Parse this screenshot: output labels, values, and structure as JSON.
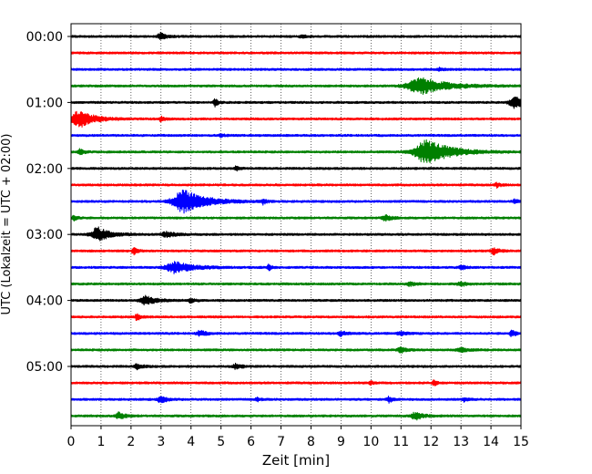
{
  "chart_data": {
    "type": "line",
    "title": "",
    "xlabel": "Zeit  [min]",
    "ylabel": "UTC (Lokalzeit = UTC + 02:00)",
    "xlim": [
      0,
      15
    ],
    "x_ticks": [
      0,
      1,
      2,
      3,
      4,
      5,
      6,
      7,
      8,
      9,
      10,
      11,
      12,
      13,
      14,
      15
    ],
    "y_tick_labels": [
      "00:00",
      "01:00",
      "02:00",
      "03:00",
      "04:00",
      "05:00"
    ],
    "row_minutes": 15,
    "grid": "vertical-dotted",
    "colors": [
      "#000000",
      "#ff0000",
      "#0000ff",
      "#008000"
    ],
    "rows": [
      {
        "start": "00:00",
        "color": "#000000",
        "events": [
          {
            "t": 3.0,
            "amp": 0.35,
            "dur": 0.3
          },
          {
            "t": 7.7,
            "amp": 0.15,
            "dur": 0.2
          }
        ]
      },
      {
        "start": "00:15",
        "color": "#ff0000",
        "events": []
      },
      {
        "start": "00:30",
        "color": "#0000ff",
        "events": [
          {
            "t": 12.3,
            "amp": 0.15,
            "dur": 0.2
          }
        ]
      },
      {
        "start": "00:45",
        "color": "#008000",
        "events": [
          {
            "t": 11.7,
            "amp": 0.85,
            "dur": 1.3
          }
        ]
      },
      {
        "start": "01:00",
        "color": "#000000",
        "events": [
          {
            "t": 4.8,
            "amp": 0.4,
            "dur": 0.15
          },
          {
            "t": 14.8,
            "amp": 0.6,
            "dur": 0.5
          }
        ]
      },
      {
        "start": "01:15",
        "color": "#ff0000",
        "events": [
          {
            "t": 0.3,
            "amp": 0.95,
            "dur": 0.7
          },
          {
            "t": 3.0,
            "amp": 0.25,
            "dur": 0.2
          }
        ]
      },
      {
        "start": "01:30",
        "color": "#0000ff",
        "events": [
          {
            "t": 5.0,
            "amp": 0.12,
            "dur": 0.2
          }
        ]
      },
      {
        "start": "01:45",
        "color": "#008000",
        "events": [
          {
            "t": 0.3,
            "amp": 0.3,
            "dur": 0.2
          },
          {
            "t": 11.9,
            "amp": 1.3,
            "dur": 1.2
          }
        ]
      },
      {
        "start": "02:00",
        "color": "#000000",
        "events": [
          {
            "t": 5.5,
            "amp": 0.25,
            "dur": 0.15
          }
        ]
      },
      {
        "start": "02:15",
        "color": "#ff0000",
        "events": [
          {
            "t": 14.2,
            "amp": 0.25,
            "dur": 0.2
          }
        ]
      },
      {
        "start": "02:30",
        "color": "#0000ff",
        "events": [
          {
            "t": 3.8,
            "amp": 1.2,
            "dur": 1.1
          },
          {
            "t": 6.4,
            "amp": 0.3,
            "dur": 0.15
          },
          {
            "t": 14.8,
            "amp": 0.25,
            "dur": 0.2
          }
        ]
      },
      {
        "start": "02:45",
        "color": "#008000",
        "events": [
          {
            "t": 0.1,
            "amp": 0.3,
            "dur": 0.15
          },
          {
            "t": 10.5,
            "amp": 0.3,
            "dur": 0.3
          }
        ]
      },
      {
        "start": "03:00",
        "color": "#000000",
        "events": [
          {
            "t": 0.9,
            "amp": 0.75,
            "dur": 0.6
          },
          {
            "t": 3.2,
            "amp": 0.25,
            "dur": 0.5
          }
        ]
      },
      {
        "start": "03:15",
        "color": "#ff0000",
        "events": [
          {
            "t": 2.1,
            "amp": 0.35,
            "dur": 0.2
          },
          {
            "t": 14.1,
            "amp": 0.35,
            "dur": 0.25
          }
        ]
      },
      {
        "start": "03:30",
        "color": "#0000ff",
        "events": [
          {
            "t": 3.5,
            "amp": 0.6,
            "dur": 0.9
          },
          {
            "t": 6.6,
            "amp": 0.3,
            "dur": 0.15
          },
          {
            "t": 13.0,
            "amp": 0.3,
            "dur": 0.2
          }
        ]
      },
      {
        "start": "03:45",
        "color": "#008000",
        "events": [
          {
            "t": 11.3,
            "amp": 0.2,
            "dur": 0.3
          },
          {
            "t": 13.0,
            "amp": 0.25,
            "dur": 0.3
          }
        ]
      },
      {
        "start": "04:00",
        "color": "#000000",
        "events": [
          {
            "t": 2.5,
            "amp": 0.5,
            "dur": 0.5
          },
          {
            "t": 4.0,
            "amp": 0.3,
            "dur": 0.2
          }
        ]
      },
      {
        "start": "04:15",
        "color": "#ff0000",
        "events": [
          {
            "t": 2.2,
            "amp": 0.45,
            "dur": 0.15
          }
        ]
      },
      {
        "start": "04:30",
        "color": "#0000ff",
        "events": [
          {
            "t": 4.3,
            "amp": 0.3,
            "dur": 0.3
          },
          {
            "t": 9.0,
            "amp": 0.25,
            "dur": 0.3
          },
          {
            "t": 11.0,
            "amp": 0.2,
            "dur": 0.3
          },
          {
            "t": 14.7,
            "amp": 0.35,
            "dur": 0.2
          }
        ]
      },
      {
        "start": "04:45",
        "color": "#008000",
        "events": [
          {
            "t": 11.0,
            "amp": 0.3,
            "dur": 0.3
          },
          {
            "t": 13.0,
            "amp": 0.2,
            "dur": 0.4
          }
        ]
      },
      {
        "start": "05:00",
        "color": "#000000",
        "events": [
          {
            "t": 2.2,
            "amp": 0.25,
            "dur": 0.3
          },
          {
            "t": 5.5,
            "amp": 0.25,
            "dur": 0.3
          }
        ]
      },
      {
        "start": "05:15",
        "color": "#ff0000",
        "events": [
          {
            "t": 10.0,
            "amp": 0.2,
            "dur": 0.15
          },
          {
            "t": 12.1,
            "amp": 0.35,
            "dur": 0.15
          }
        ]
      },
      {
        "start": "05:30",
        "color": "#0000ff",
        "events": [
          {
            "t": 3.0,
            "amp": 0.35,
            "dur": 0.3
          },
          {
            "t": 6.2,
            "amp": 0.25,
            "dur": 0.15
          },
          {
            "t": 10.6,
            "amp": 0.35,
            "dur": 0.2
          },
          {
            "t": 13.1,
            "amp": 0.2,
            "dur": 0.2
          }
        ]
      },
      {
        "start": "05:45",
        "color": "#008000",
        "events": [
          {
            "t": 1.6,
            "amp": 0.35,
            "dur": 0.3
          },
          {
            "t": 11.5,
            "amp": 0.4,
            "dur": 0.4
          }
        ]
      }
    ]
  }
}
